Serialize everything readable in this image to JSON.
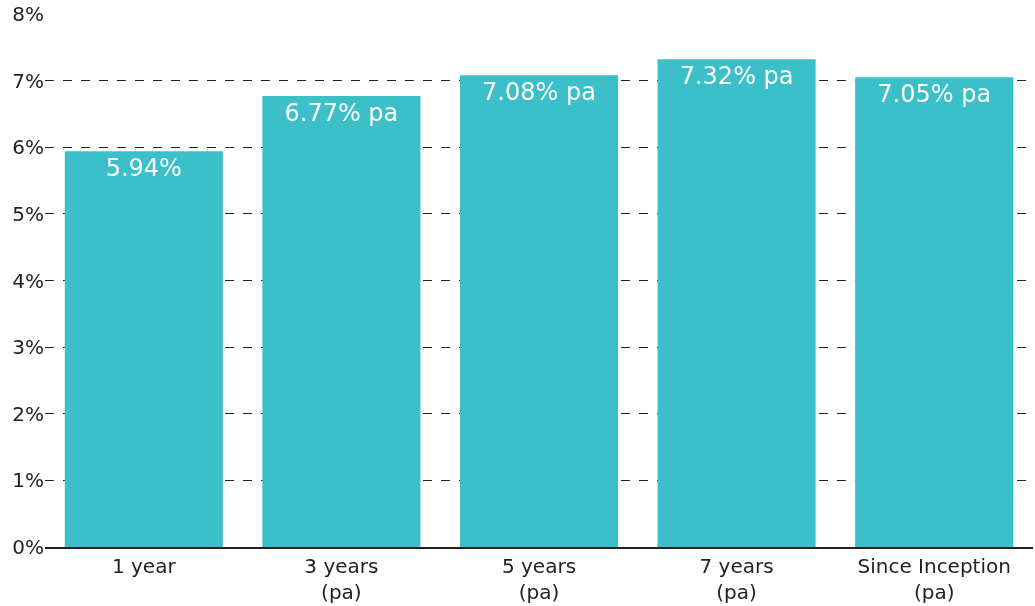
{
  "chart_data": {
    "type": "bar",
    "categories": [
      "1 year",
      "3 years\n(pa)",
      "5 years\n(pa)",
      "7 years\n(pa)",
      "Since Inception\n(pa)"
    ],
    "values": [
      5.94,
      6.77,
      7.08,
      7.32,
      7.05
    ],
    "value_labels": [
      "5.94%",
      "6.77% pa",
      "7.08% pa",
      "7.32% pa",
      "7.05% pa"
    ],
    "color": "#3bbfc9",
    "ylim": [
      0,
      8
    ],
    "yticks": [
      {
        "value": 0,
        "label": "0%"
      },
      {
        "value": 1,
        "label": "1%"
      },
      {
        "value": 2,
        "label": "2%"
      },
      {
        "value": 3,
        "label": "3%"
      },
      {
        "value": 4,
        "label": "4%"
      },
      {
        "value": 5,
        "label": "5%"
      },
      {
        "value": 6,
        "label": "6%"
      },
      {
        "value": 7,
        "label": "7%"
      },
      {
        "value": 8,
        "label": "8%"
      }
    ],
    "grid": "y",
    "line_style": "dashed",
    "legend": false
  }
}
